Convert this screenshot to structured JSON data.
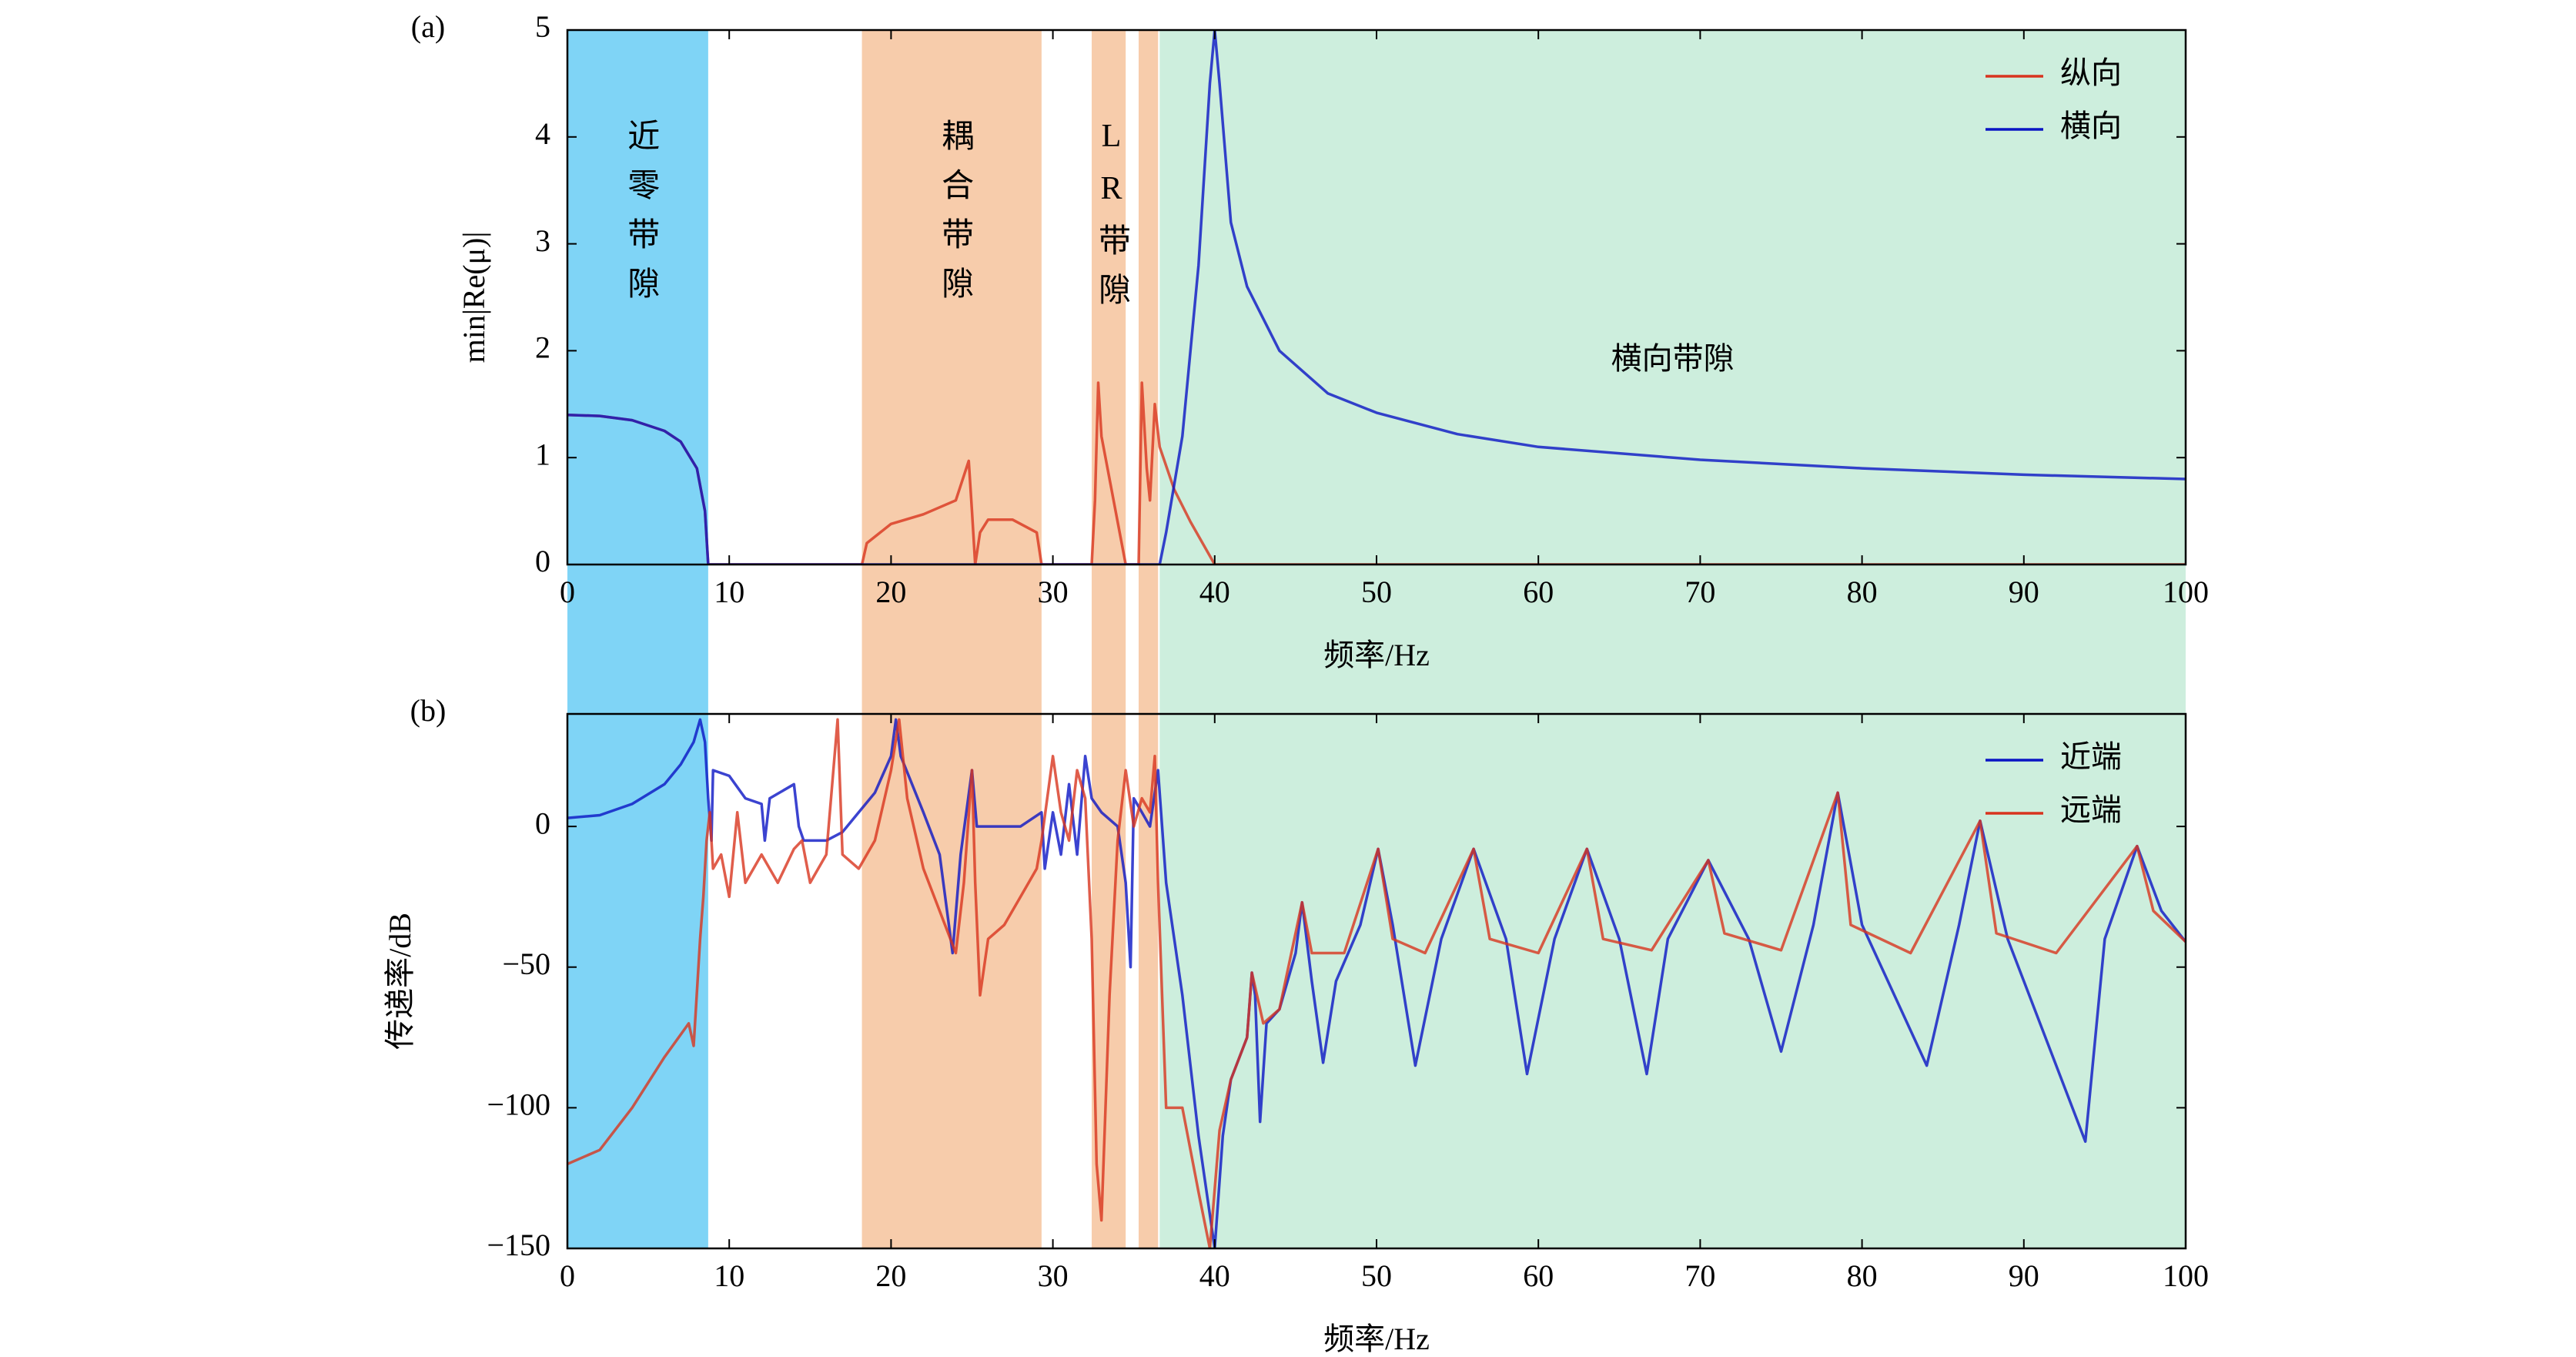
{
  "bands": [
    {
      "x": [
        0,
        8.7
      ],
      "color": "#7fd4f6",
      "label": "近零带隙"
    },
    {
      "x": [
        18.2,
        29.3
      ],
      "color": "#f7ccab",
      "label": "耦合带隙"
    },
    {
      "x": [
        32.4,
        34.5
      ],
      "color": "#f7ccab",
      "label": "LR带隙"
    },
    {
      "x": [
        35.3,
        36.5
      ],
      "color": "#f7ccab"
    },
    {
      "x": [
        36.6,
        100
      ],
      "color": "#cdeedd",
      "label": "横向带隙"
    }
  ],
  "chart_data": [
    {
      "type": "line",
      "panel": "(a)",
      "x_label": "频率/Hz",
      "y_label": "min|Re(μ)|",
      "xlim": [
        0,
        100
      ],
      "xticks": [
        0,
        10,
        20,
        30,
        40,
        50,
        60,
        70,
        80,
        90,
        100
      ],
      "ylim": [
        0,
        5
      ],
      "yticks": [
        0,
        1,
        2,
        3,
        4,
        5
      ],
      "legend": "upper right",
      "series": [
        {
          "name": "纵向",
          "color": "#d8341e",
          "x": [
            0,
            2,
            4,
            6,
            7,
            8,
            8.5,
            8.7,
            18.2,
            18.5,
            20,
            22,
            24,
            24.8,
            25,
            25.2,
            25.5,
            26,
            27.5,
            29,
            29.3,
            32.4,
            32.6,
            32.8,
            33,
            33.5,
            34,
            34.5,
            35.3,
            35.5,
            35.8,
            36,
            36.3,
            36.6,
            37.5,
            38.5,
            40,
            100
          ],
          "values": [
            1.4,
            1.39,
            1.35,
            1.25,
            1.15,
            0.9,
            0.5,
            0,
            0,
            0.2,
            0.38,
            0.47,
            0.6,
            0.97,
            0.5,
            0,
            0.3,
            0.42,
            0.42,
            0.3,
            0,
            0,
            0.6,
            1.7,
            1.2,
            0.8,
            0.4,
            0,
            0,
            1.7,
            0.9,
            0.6,
            1.5,
            1.1,
            0.7,
            0.4,
            0,
            0
          ]
        },
        {
          "name": "横向",
          "color": "#0a14c4",
          "x": [
            0,
            2,
            4,
            6,
            7,
            8,
            8.5,
            8.7,
            36.6,
            37,
            38,
            39,
            39.7,
            40,
            40.3,
            41,
            42,
            44,
            47,
            50,
            55,
            60,
            70,
            80,
            90,
            100
          ],
          "values": [
            1.4,
            1.39,
            1.35,
            1.25,
            1.15,
            0.9,
            0.5,
            0,
            0,
            0.3,
            1.2,
            2.8,
            4.5,
            5,
            4.5,
            3.2,
            2.6,
            2.0,
            1.6,
            1.42,
            1.22,
            1.1,
            0.98,
            0.9,
            0.84,
            0.8
          ]
        }
      ]
    },
    {
      "type": "line",
      "panel": "(b)",
      "x_label": "频率/Hz",
      "y_label": "传递率/dB",
      "xlim": [
        0,
        100
      ],
      "xticks": [
        0,
        10,
        20,
        30,
        40,
        50,
        60,
        70,
        80,
        90,
        100
      ],
      "ylim": [
        -150,
        40
      ],
      "yticks": [
        {
          "value": -150,
          "label": "−150"
        },
        {
          "value": -100,
          "label": "−100"
        },
        {
          "value": -50,
          "label": "−50"
        },
        0
      ],
      "legend": "upper right",
      "series": [
        {
          "name": "近端",
          "color": "#0a14c4",
          "x": [
            0,
            2,
            4,
            6,
            7,
            7.8,
            8.2,
            8.5,
            8.7,
            8.9,
            9,
            10,
            11,
            12,
            12.2,
            12.5,
            14,
            14.3,
            14.6,
            16,
            17,
            18,
            19,
            20,
            20.3,
            20.6,
            22,
            23,
            23.8,
            24.3,
            25,
            25.3,
            26,
            28,
            29.3,
            29.5,
            30,
            30.5,
            31,
            31.5,
            32,
            32.4,
            33,
            34,
            34.5,
            34.8,
            35,
            35.5,
            36,
            36.5,
            37,
            38,
            39,
            40,
            40.5,
            41,
            42,
            42.3,
            42.5,
            42.8,
            43.2,
            44,
            45,
            45.4,
            46,
            46.7,
            47.5,
            49,
            50.1,
            51,
            52.4,
            54,
            56,
            58,
            59.3,
            61,
            63,
            65,
            66.7,
            68,
            70.5,
            73,
            75,
            77,
            78.5,
            80,
            84,
            86,
            87.3,
            89,
            93.8,
            95,
            97,
            98.5,
            100
          ],
          "values": [
            3,
            4,
            8,
            15,
            22,
            30,
            38,
            30,
            10,
            -5,
            20,
            18,
            10,
            8,
            -5,
            10,
            15,
            0,
            -5,
            -5,
            -2,
            5,
            12,
            25,
            38,
            25,
            5,
            -10,
            -45,
            -10,
            20,
            0,
            0,
            0,
            5,
            -15,
            5,
            -10,
            15,
            -10,
            25,
            10,
            5,
            0,
            -20,
            -50,
            10,
            5,
            0,
            20,
            -20,
            -60,
            -110,
            -150,
            -110,
            -90,
            -75,
            -52,
            -60,
            -105,
            -70,
            -65,
            -45,
            -27,
            -55,
            -84,
            -55,
            -35,
            -8,
            -35,
            -85,
            -40,
            -8,
            -40,
            -88,
            -40,
            -8,
            -40,
            -88,
            -40,
            -12,
            -40,
            -80,
            -35,
            12,
            -35,
            -85,
            -35,
            2,
            -40,
            -112,
            -40,
            -7,
            -30,
            -41
          ]
        },
        {
          "name": "远端",
          "color": "#d8341e",
          "x": [
            0,
            2,
            4,
            6,
            7.5,
            7.8,
            8.2,
            8.4,
            8.6,
            8.8,
            9,
            9.5,
            10,
            10.5,
            11,
            12,
            13,
            14,
            14.5,
            15,
            16,
            16.7,
            17,
            18,
            19,
            20,
            20.5,
            21,
            22,
            23,
            24,
            24.5,
            25,
            25.2,
            25.5,
            26,
            27,
            28,
            29,
            29.3,
            30,
            30.5,
            31,
            31.5,
            32,
            32.4,
            32.7,
            33,
            33.5,
            34,
            34.5,
            35,
            35.5,
            36,
            36.3,
            36.5,
            37,
            38,
            39,
            39.7,
            40.3,
            41,
            42,
            42.3,
            43,
            44,
            45.4,
            46,
            48,
            50.1,
            51,
            53,
            56,
            57,
            60,
            63,
            64,
            67,
            70.5,
            71.5,
            75,
            78.5,
            79.3,
            83,
            87.3,
            88.3,
            92,
            97,
            98,
            100
          ],
          "values": [
            -120,
            -115,
            -100,
            -82,
            -70,
            -78,
            -40,
            -25,
            -5,
            5,
            -15,
            -10,
            -25,
            5,
            -20,
            -10,
            -20,
            -8,
            -5,
            -20,
            -10,
            38,
            -10,
            -15,
            -5,
            20,
            38,
            10,
            -15,
            -30,
            -45,
            -20,
            20,
            -20,
            -60,
            -40,
            -35,
            -25,
            -15,
            -5,
            25,
            5,
            -5,
            20,
            10,
            -40,
            -120,
            -140,
            -60,
            -5,
            20,
            0,
            10,
            5,
            25,
            -20,
            -100,
            -100,
            -130,
            -150,
            -108,
            -90,
            -75,
            -52,
            -70,
            -65,
            -27,
            -45,
            -45,
            -8,
            -40,
            -45,
            -8,
            -40,
            -45,
            -8,
            -40,
            -44,
            -12,
            -38,
            -44,
            12,
            -35,
            -45,
            2,
            -38,
            -45,
            -7,
            -30,
            -41
          ]
        }
      ]
    }
  ]
}
